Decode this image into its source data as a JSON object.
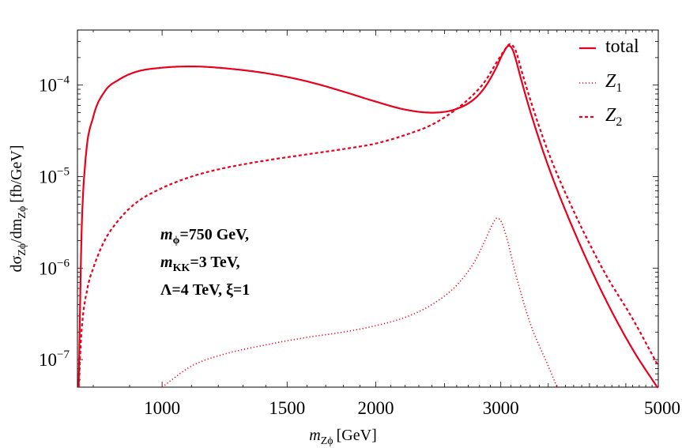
{
  "chart_data": {
    "type": "line",
    "scale": {
      "x": "log",
      "y": "log"
    },
    "xlabel": {
      "symbol": "m",
      "sub": "Zϕ",
      "unit": "[GeV]"
    },
    "ylabel": {
      "prefix": "dσ",
      "sub1": "Zϕ",
      "mid": "/dm",
      "sub2": "Zϕ",
      "unit": "[fb/GeV]"
    },
    "xlim": [
      760,
      5000
    ],
    "ylim": [
      5e-08,
      0.0004
    ],
    "x_ticks": [
      {
        "value": 1000,
        "label": "1000"
      },
      {
        "value": 1500,
        "label": "1500"
      },
      {
        "value": 2000,
        "label": "2000"
      },
      {
        "value": 3000,
        "label": "3000"
      },
      {
        "value": 5000,
        "label": "5000"
      }
    ],
    "y_ticks": [
      {
        "value": 0.0001,
        "base": "10",
        "exp": "−4"
      },
      {
        "value": 1e-05,
        "base": "10",
        "exp": "−5"
      },
      {
        "value": 1e-06,
        "base": "10",
        "exp": "−6"
      },
      {
        "value": 1e-07,
        "base": "10",
        "exp": "−7"
      }
    ],
    "legend": {
      "position": "top-right",
      "entries": [
        {
          "label": "total",
          "sub": "",
          "style": "solid"
        },
        {
          "label": "Z",
          "sub": "1",
          "style": "dotted"
        },
        {
          "label": "Z",
          "sub": "2",
          "style": "dashed"
        }
      ]
    },
    "series": [
      {
        "name": "total",
        "style": "solid",
        "color": "#e8001c",
        "x": [
          763,
          770,
          780,
          800,
          830,
          870,
          920,
          1000,
          1100,
          1200,
          1400,
          1600,
          1800,
          2000,
          2200,
          2400,
          2600,
          2750,
          2850,
          2950,
          3020,
          3080,
          3120,
          3150,
          3200,
          3300,
          3500,
          3800,
          4200,
          4600,
          5000
        ],
        "y": [
          5e-08,
          2.2e-06,
          1.5e-05,
          4.5e-05,
          8.5e-05,
          0.000115,
          0.00014,
          0.000155,
          0.00016,
          0.000155,
          0.000135,
          0.00011,
          8.5e-05,
          6.6e-05,
          5.4e-05,
          5e-05,
          5.5e-05,
          7e-05,
          9.5e-05,
          0.00015,
          0.00022,
          0.00027,
          0.00024,
          0.00019,
          0.00012,
          5.2e-05,
          1.3e-05,
          2.6e-06,
          4.8e-07,
          1.3e-07,
          4.8e-08
        ]
      },
      {
        "name": "Z1",
        "style": "dotted",
        "color": "#e8001c",
        "x": [
          1000,
          1100,
          1200,
          1400,
          1600,
          1800,
          2000,
          2200,
          2400,
          2600,
          2750,
          2850,
          2920,
          2960,
          3000,
          3050,
          3150,
          3300,
          3500,
          3600
        ],
        "y": [
          5e-08,
          8.5e-08,
          1.1e-07,
          1.45e-07,
          1.75e-07,
          2e-07,
          2.35e-07,
          2.9e-07,
          4e-07,
          6.5e-07,
          1.15e-06,
          2e-06,
          3e-06,
          3.5e-06,
          3.3e-06,
          2.3e-06,
          8.5e-07,
          2.5e-07,
          8.5e-08,
          5e-08
        ]
      },
      {
        "name": "Z2",
        "style": "dashed",
        "color": "#e8001c",
        "x": [
          763,
          770,
          785,
          800,
          830,
          870,
          920,
          1000,
          1100,
          1200,
          1400,
          1600,
          1800,
          2000,
          2200,
          2400,
          2600,
          2750,
          2850,
          2950,
          3030,
          3090,
          3130,
          3160,
          3200,
          3300,
          3500,
          3800,
          4200,
          4600,
          5000
        ],
        "y": [
          5e-08,
          2e-07,
          6e-07,
          1e-06,
          2e-06,
          3.4e-06,
          5.2e-06,
          7.5e-06,
          1e-05,
          1.2e-05,
          1.5e-05,
          1.75e-05,
          2e-05,
          2.3e-05,
          2.85e-05,
          3.7e-05,
          5.5e-05,
          8e-05,
          0.00011,
          0.00017,
          0.000235,
          0.00028,
          0.00026,
          0.00022,
          0.000155,
          7e-05,
          1.85e-05,
          4.2e-06,
          9e-07,
          2.8e-07,
          8.5e-08
        ]
      }
    ],
    "annotations": [
      {
        "sym": "m",
        "sub": "ϕ",
        "rest": "=750 GeV,"
      },
      {
        "sym": "m",
        "sub": "KK",
        "rest": "=3 TeV,"
      },
      {
        "sym": "",
        "sub": "",
        "rest": "Λ=4 TeV, ξ=1"
      }
    ]
  }
}
